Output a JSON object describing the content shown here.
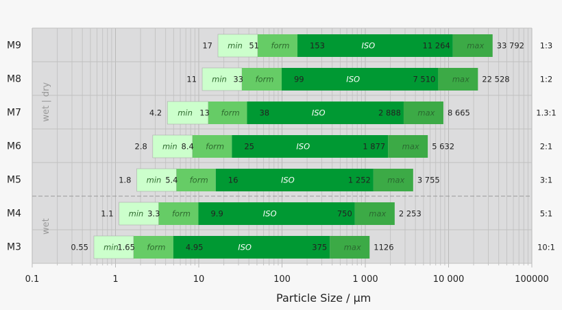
{
  "chart_data": {
    "type": "bar",
    "subtype": "stacked-range-horizontal",
    "xlabel": "Particle Size / µm",
    "xscale": "log",
    "xlim": [
      0.1,
      100000
    ],
    "xticks": [
      "0.1",
      "1",
      "10",
      "100",
      "1 000",
      "10 000",
      "100000"
    ],
    "xtick_values": [
      0.1,
      1,
      10,
      100,
      1000,
      10000,
      100000
    ],
    "grid": true,
    "segment_labels": [
      "min",
      "form",
      "ISO",
      "max"
    ],
    "group_labels": {
      "dry": "wet | dry",
      "wet": "wet"
    },
    "colors": {
      "min": "#ccffcc",
      "form": "#66cc66",
      "iso": "#009933",
      "max": "#3caa46",
      "plot_bg": "#dcdcdd"
    },
    "rows": [
      {
        "name": "M9",
        "values": [
          17,
          51,
          153,
          11264,
          33792
        ],
        "labels": [
          "17",
          "51",
          "153",
          "11 264",
          "33 792"
        ],
        "ratio": "1:3"
      },
      {
        "name": "M8",
        "values": [
          11,
          33,
          99,
          7510,
          22528
        ],
        "labels": [
          "11",
          "33",
          "99",
          "7 510",
          "22 528"
        ],
        "ratio": "1:2"
      },
      {
        "name": "M7",
        "values": [
          4.2,
          13,
          38,
          2888,
          8665
        ],
        "labels": [
          "4.2",
          "13",
          "38",
          "2 888",
          "8 665"
        ],
        "ratio": "1.3:1"
      },
      {
        "name": "M6",
        "values": [
          2.8,
          8.4,
          25,
          1877,
          5632
        ],
        "labels": [
          "2.8",
          "8.4",
          "25",
          "1 877",
          "5 632"
        ],
        "ratio": "2:1"
      },
      {
        "name": "M5",
        "values": [
          1.8,
          5.4,
          16,
          1252,
          3755
        ],
        "labels": [
          "1.8",
          "5.4",
          "16",
          "1 252",
          "3 755"
        ],
        "ratio": "3:1"
      },
      {
        "name": "M4",
        "values": [
          1.1,
          3.3,
          9.9,
          750,
          2253
        ],
        "labels": [
          "1.1",
          "3.3",
          "9.9",
          "750",
          "2 253"
        ],
        "ratio": "5:1"
      },
      {
        "name": "M3",
        "values": [
          0.55,
          1.65,
          4.95,
          375,
          1126
        ],
        "labels": [
          "0.55",
          "1.65",
          "4.95",
          "375",
          "1126"
        ],
        "ratio": "10:1"
      }
    ]
  }
}
